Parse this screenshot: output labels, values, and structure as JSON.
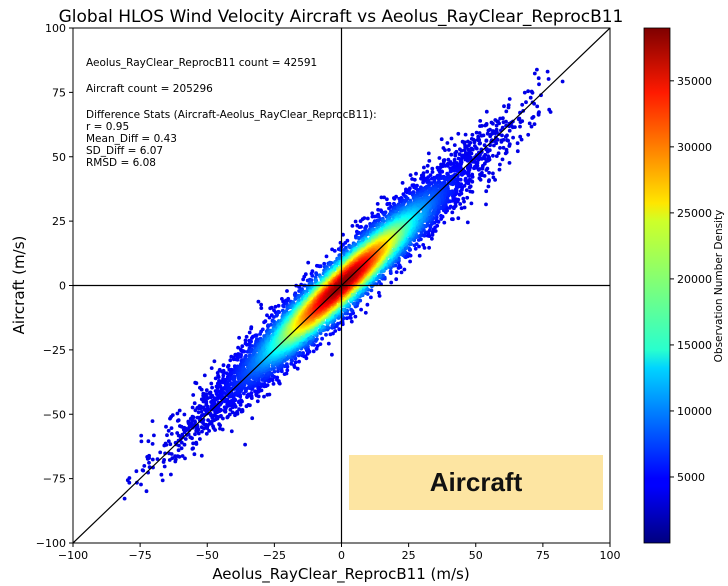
{
  "chart_data": {
    "type": "scatter",
    "title": "Global HLOS Wind Velocity Aircraft vs Aeolus_RayClear_ReprocB11",
    "xlabel": "Aeolus_RayClear_ReprocB11 (m/s)",
    "ylabel": "Aircraft (m/s)",
    "xlim": [
      -100,
      100
    ],
    "ylim": [
      -100,
      100
    ],
    "xticks": [
      -100,
      -75,
      -50,
      -25,
      0,
      25,
      50,
      75,
      100
    ],
    "yticks": [
      -100,
      -75,
      -50,
      -25,
      0,
      25,
      50,
      75,
      100
    ],
    "xtick_labels": [
      "−100",
      "−75",
      "−50",
      "−25",
      "0",
      "25",
      "50",
      "75",
      "100"
    ],
    "ytick_labels": [
      "−100",
      "−75",
      "−50",
      "−25",
      "0",
      "25",
      "50",
      "75",
      "100"
    ],
    "reference_lines": [
      "1:1 diagonal",
      "x = 0",
      "y = 0"
    ],
    "density_colormap": "jet",
    "colorbar": {
      "label": "Observation Number Density",
      "range": [
        0,
        39000
      ],
      "ticks": [
        5000,
        10000,
        15000,
        20000,
        25000,
        30000,
        35000
      ],
      "tick_labels": [
        "5000",
        "10000",
        "15000",
        "20000",
        "25000",
        "30000",
        "35000"
      ]
    },
    "stats_lines": [
      "Aeolus_RayClear_ReprocB11 count = 42591",
      "Aircraft count = 205296",
      "Difference Stats (Aircraft-Aeolus_RayClear_ReprocB11):",
      "r = 0.95",
      "Mean_Diff = 0.43",
      "SD_Diff = 6.07",
      "RMSD = 6.08"
    ],
    "stats": {
      "aeolus_count": 42591,
      "aircraft_count": 205296,
      "r": 0.95,
      "mean_diff": 0.43,
      "sd_diff": 6.07,
      "rmsd": 6.08
    },
    "grid": false
  },
  "badge": {
    "text": "Aircraft",
    "background": "#fde5a2"
  }
}
